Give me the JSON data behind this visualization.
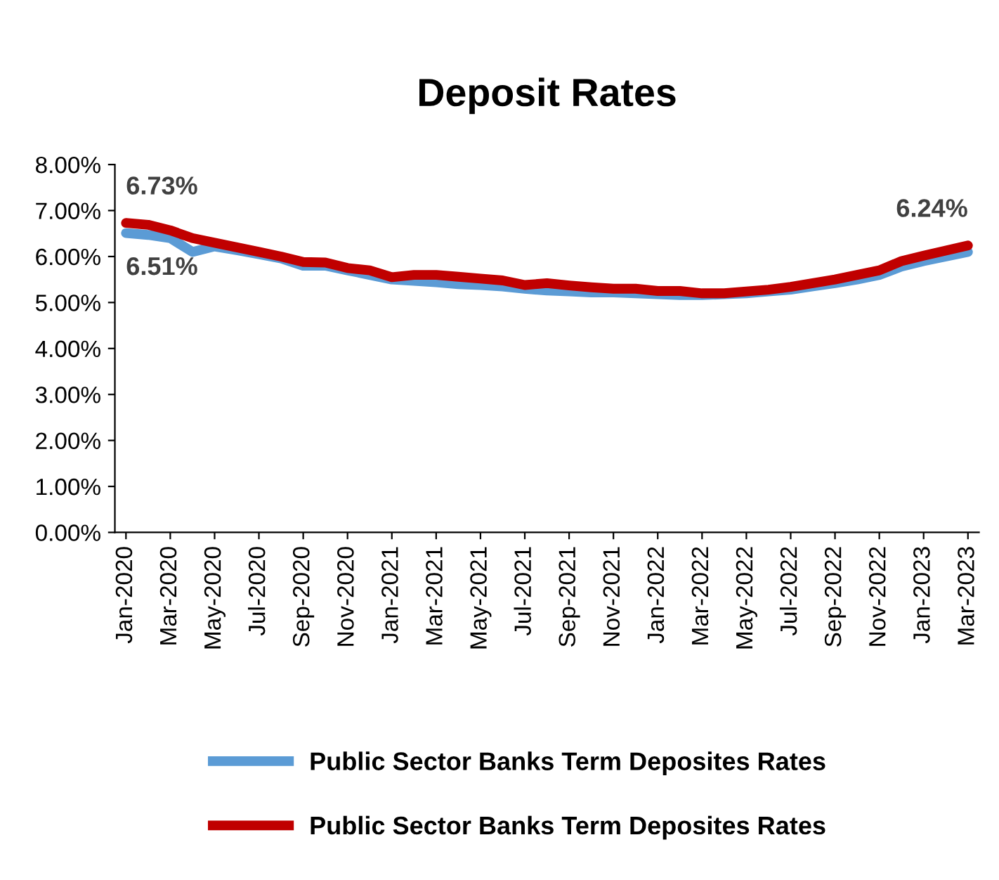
{
  "chart_data": {
    "type": "line",
    "title": "Deposit Rates",
    "categories": [
      "Jan-2020",
      null,
      "Mar-2020",
      null,
      "May-2020",
      null,
      "Jul-2020",
      null,
      "Sep-2020",
      null,
      "Nov-2020",
      null,
      "Jan-2021",
      null,
      "Mar-2021",
      null,
      "May-2021",
      null,
      "Jul-2021",
      null,
      "Sep-2021",
      null,
      "Nov-2021",
      null,
      "Jan-2022",
      null,
      "Mar-2022",
      null,
      "May-2022",
      null,
      "Jul-2022",
      null,
      "Sep-2022",
      null,
      "Nov-2022",
      null,
      "Jan-2023",
      null,
      "Mar-2023"
    ],
    "series": [
      {
        "name": "Public Sector Banks Term Deposites Rates",
        "color": "#5b9bd5",
        "values": [
          6.51,
          6.47,
          6.4,
          6.1,
          6.22,
          6.14,
          6.05,
          5.96,
          5.8,
          5.8,
          5.7,
          5.6,
          5.5,
          5.47,
          5.44,
          5.4,
          5.38,
          5.35,
          5.3,
          5.26,
          5.24,
          5.22,
          5.22,
          5.2,
          5.18,
          5.16,
          5.16,
          5.18,
          5.2,
          5.24,
          5.28,
          5.35,
          5.42,
          5.5,
          5.6,
          5.78,
          5.9,
          6.0,
          6.1
        ],
        "value_labels": [
          "6.51%",
          null,
          null,
          null,
          null,
          null,
          null,
          null,
          null,
          null,
          null,
          null,
          null,
          null,
          null,
          null,
          null,
          null,
          null,
          null,
          null,
          null,
          null,
          null,
          null,
          null,
          null,
          null,
          null,
          null,
          null,
          null,
          null,
          null,
          null,
          null,
          null,
          null,
          null
        ]
      },
      {
        "name": "Public Sector Banks Term Deposites Rates",
        "color": "#c00000",
        "values": [
          6.73,
          6.69,
          6.57,
          6.4,
          6.3,
          6.2,
          6.1,
          6.0,
          5.88,
          5.87,
          5.75,
          5.7,
          5.55,
          5.6,
          5.6,
          5.56,
          5.52,
          5.48,
          5.38,
          5.42,
          5.37,
          5.33,
          5.3,
          5.3,
          5.25,
          5.25,
          5.2,
          5.2,
          5.24,
          5.28,
          5.34,
          5.42,
          5.5,
          5.6,
          5.7,
          5.9,
          6.02,
          6.13,
          6.24
        ],
        "value_labels": [
          "6.73%",
          null,
          null,
          null,
          null,
          null,
          null,
          null,
          null,
          null,
          null,
          null,
          null,
          null,
          null,
          null,
          null,
          null,
          null,
          null,
          null,
          null,
          null,
          null,
          null,
          null,
          null,
          null,
          null,
          null,
          null,
          null,
          null,
          null,
          null,
          null,
          null,
          null,
          "6.24%"
        ]
      }
    ],
    "ylim": [
      0,
      8
    ],
    "yticks": [
      {
        "value": 0,
        "label": "0.00%"
      },
      {
        "value": 1,
        "label": "1.00%"
      },
      {
        "value": 2,
        "label": "2.00%"
      },
      {
        "value": 3,
        "label": "3.00%"
      },
      {
        "value": 4,
        "label": "4.00%"
      },
      {
        "value": 5,
        "label": "5.00%"
      },
      {
        "value": 6,
        "label": "6.00%"
      },
      {
        "value": 7,
        "label": "7.00%"
      },
      {
        "value": 8,
        "label": "8.00%"
      }
    ],
    "grid": false,
    "legend": "bottom",
    "marker": "none",
    "line_style": "solid"
  }
}
